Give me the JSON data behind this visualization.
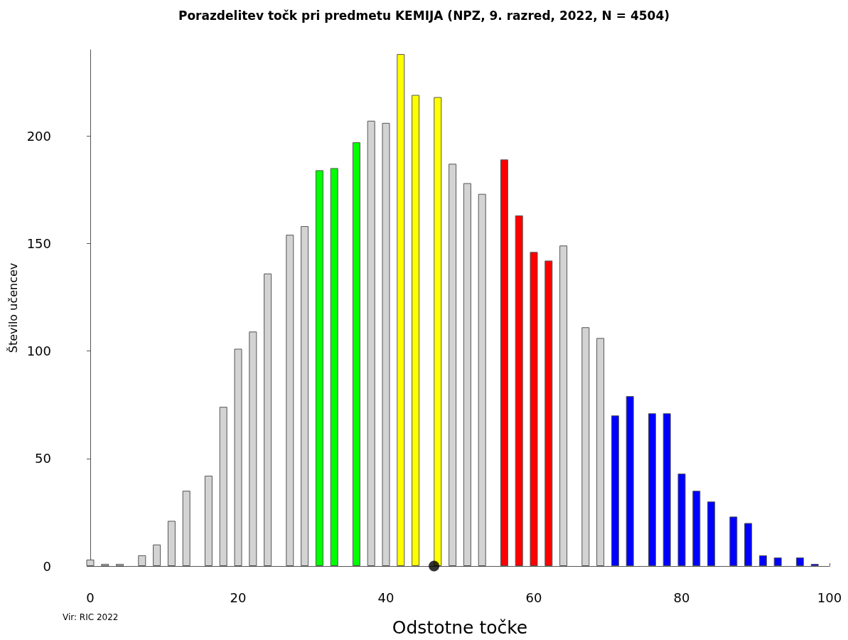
{
  "chart_data": {
    "type": "bar",
    "title": "Porazdelitev točk pri predmetu KEMIJA (NPZ, 9. razred, 2022, N = 4504)",
    "xlabel": "Odstotne točke",
    "ylabel": "Število učencev",
    "annotations": [
      "Vir: RIC 2022"
    ],
    "series": [
      {
        "x": [
          0,
          2,
          4,
          7,
          9,
          11,
          13,
          16,
          18,
          20,
          22,
          24,
          27,
          29,
          31,
          33,
          36,
          38,
          40,
          42,
          44,
          47,
          49,
          51,
          53,
          56,
          58,
          60,
          62,
          64,
          67,
          69,
          71,
          73,
          76,
          78,
          80,
          82,
          84,
          87,
          89,
          91,
          93,
          96,
          98
        ],
        "values": [
          3,
          1,
          1,
          5,
          10,
          21,
          35,
          42,
          74,
          101,
          109,
          136,
          154,
          158,
          184,
          185,
          197,
          207,
          206,
          238,
          219,
          218,
          187,
          178,
          173,
          189,
          163,
          146,
          142,
          149,
          111,
          106,
          70,
          79,
          71,
          71,
          43,
          35,
          30,
          23,
          20,
          5,
          4,
          4,
          1
        ],
        "colors": [
          "#d3d3d3",
          "#d3d3d3",
          "#d3d3d3",
          "#d3d3d3",
          "#d3d3d3",
          "#d3d3d3",
          "#d3d3d3",
          "#d3d3d3",
          "#d3d3d3",
          "#d3d3d3",
          "#d3d3d3",
          "#d3d3d3",
          "#d3d3d3",
          "#d3d3d3",
          "#00ff00",
          "#00ff00",
          "#00ff00",
          "#d3d3d3",
          "#d3d3d3",
          "#ffff00",
          "#ffff00",
          "#ffff00",
          "#d3d3d3",
          "#d3d3d3",
          "#d3d3d3",
          "#ff0000",
          "#ff0000",
          "#ff0000",
          "#ff0000",
          "#d3d3d3",
          "#d3d3d3",
          "#d3d3d3",
          "#0000ff",
          "#0000ff",
          "#0000ff",
          "#0000ff",
          "#0000ff",
          "#0000ff",
          "#0000ff",
          "#0000ff",
          "#0000ff",
          "#0000ff",
          "#0000ff",
          "#0000ff",
          "#0000ff"
        ]
      },
      {
        "type": "scatter",
        "x": [
          46.5
        ],
        "values": [
          0
        ],
        "color": "#000000"
      }
    ],
    "marker": "circle",
    "xlim": [
      0,
      100
    ],
    "xticks": [
      0,
      20,
      40,
      60,
      80,
      100
    ],
    "ylim": [
      0,
      240
    ],
    "yticks": [
      0,
      50,
      100,
      150,
      200
    ],
    "grid": false
  }
}
